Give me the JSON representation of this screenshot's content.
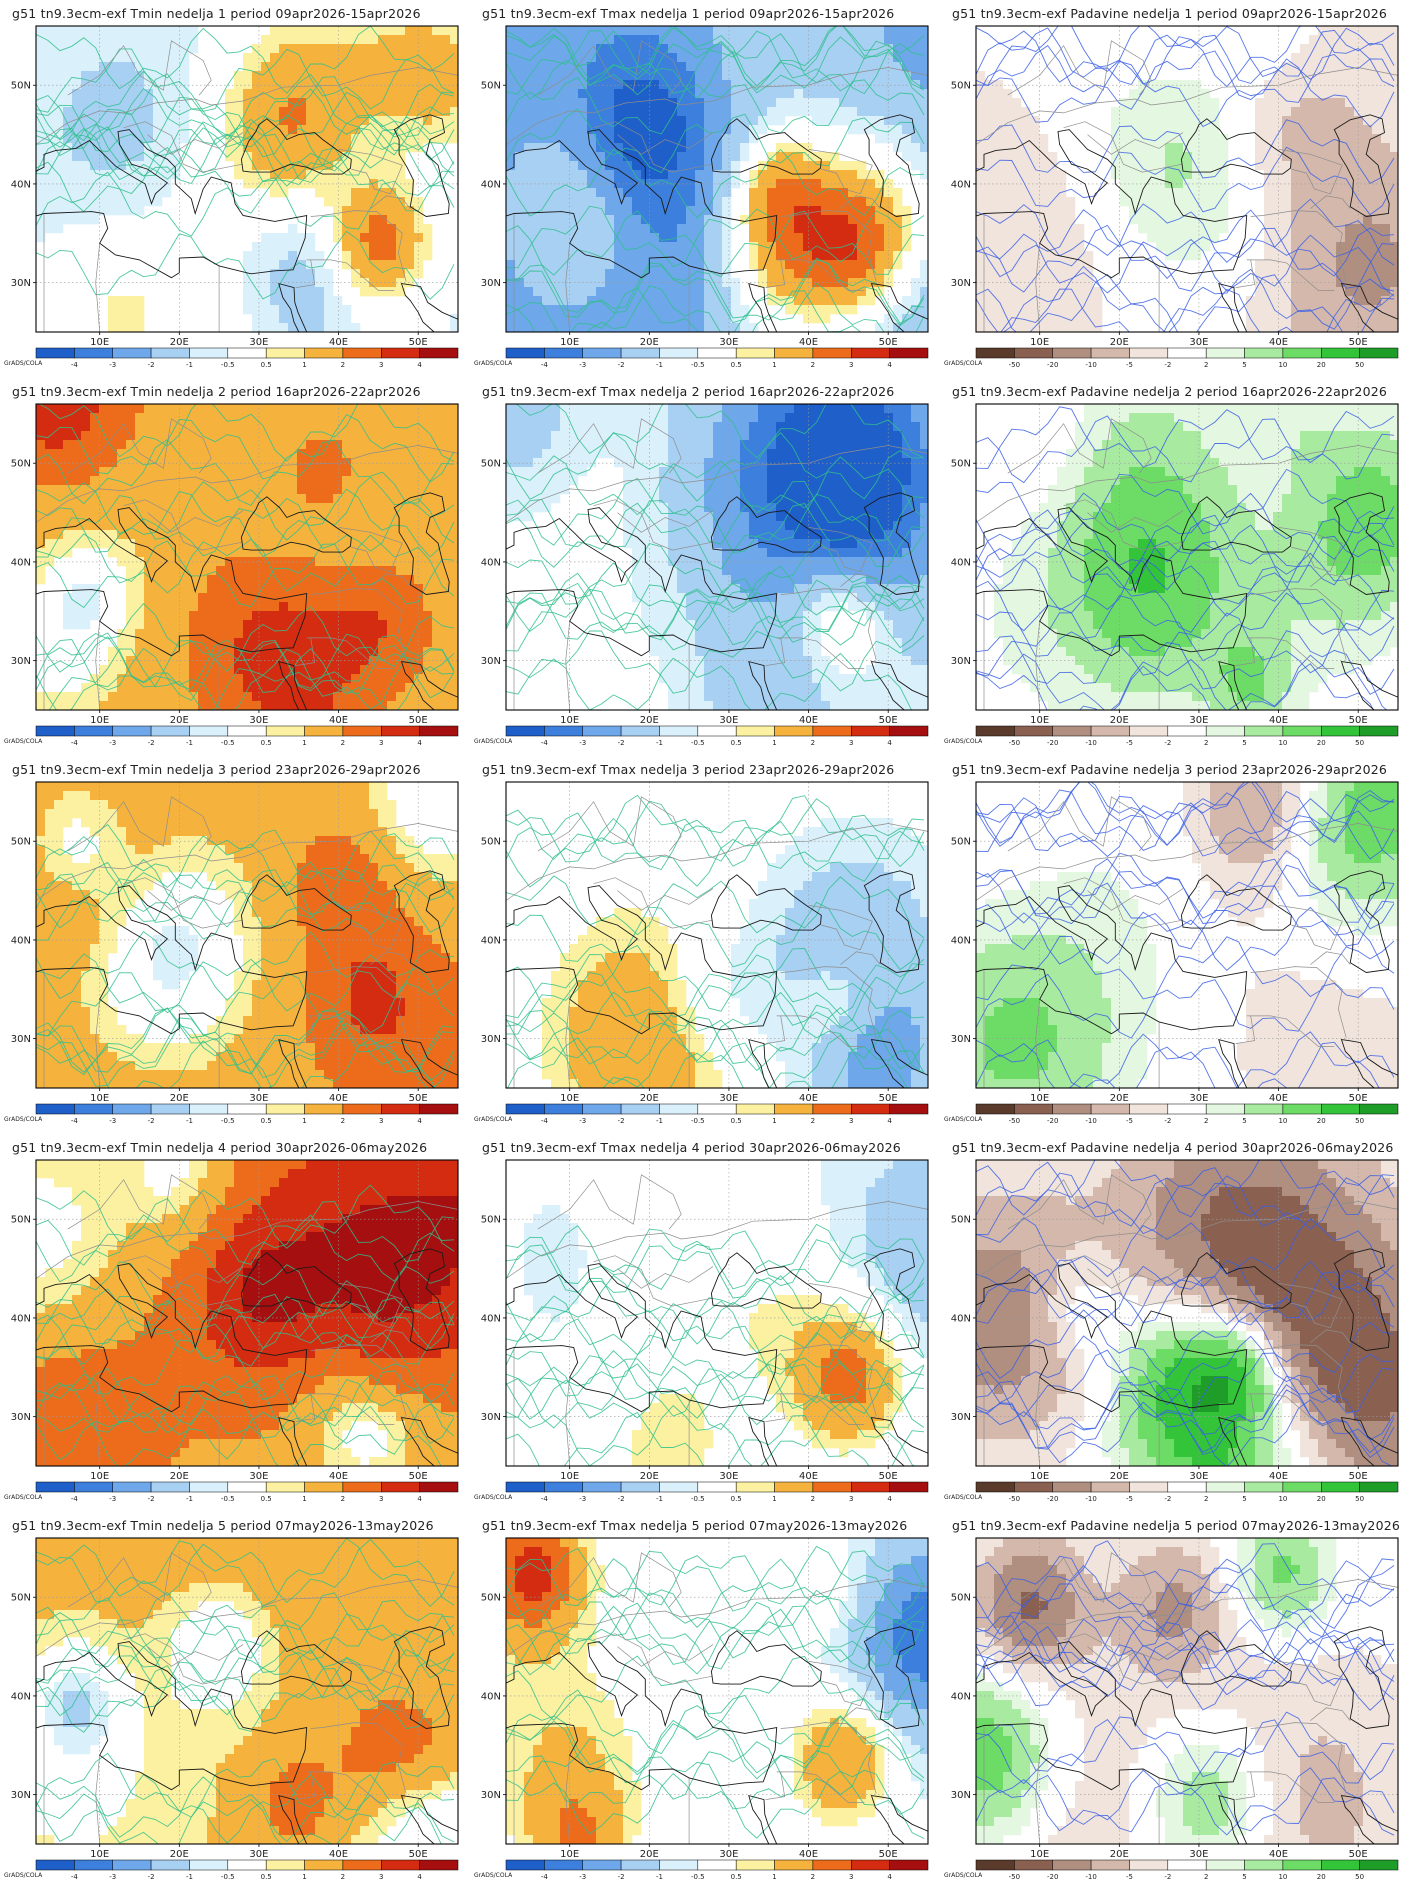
{
  "page": {
    "credit": "GrADS/COLA"
  },
  "axes": {
    "x_ticks": [
      "10E",
      "20E",
      "30E",
      "40E",
      "50E"
    ],
    "y_ticks": [
      "50N",
      "40N",
      "30N"
    ]
  },
  "colorbars": {
    "temperature": {
      "labels": [
        "-4",
        "-3",
        "-2",
        "-1",
        "-0.5",
        "0.5",
        "1",
        "2",
        "3",
        "4"
      ],
      "colors": [
        "#1f5fc9",
        "#3c7fdc",
        "#6ea8ea",
        "#a8d0f3",
        "#daf0fb",
        "#ffffff",
        "#fbf1a0",
        "#f5b33e",
        "#ec6c1c",
        "#d42c10",
        "#a50f0f"
      ]
    },
    "precipitation": {
      "labels": [
        "-50",
        "-20",
        "-10",
        "-5",
        "-2",
        "2",
        "5",
        "10",
        "20",
        "50"
      ],
      "colors": [
        "#5a3a2a",
        "#8a6150",
        "#b08f80",
        "#d4b8ab",
        "#f1e4dc",
        "#ffffff",
        "#e4f7e0",
        "#a8eba0",
        "#6ddc66",
        "#33c43a",
        "#1e9e28"
      ]
    }
  },
  "panels": [
    {
      "title": "g51  tn9.3ecm-exf  Tmin  nedelja  1  period  09apr2026-15apr2026",
      "type": "temperature",
      "var": "Tmin",
      "week": 1
    },
    {
      "title": "g51  tn9.3ecm-exf  Tmax  nedelja  1  period  09apr2026-15apr2026",
      "type": "temperature",
      "var": "Tmax",
      "week": 1
    },
    {
      "title": "g51  tn9.3ecm-exf  Padavine  nedelja  1  period  09apr2026-15apr2026",
      "type": "precipitation",
      "var": "Padavine",
      "week": 1
    },
    {
      "title": "g51  tn9.3ecm-exf  Tmin  nedelja  2  period  16apr2026-22apr2026",
      "type": "temperature",
      "var": "Tmin",
      "week": 2
    },
    {
      "title": "g51  tn9.3ecm-exf  Tmax  nedelja  2  period  16apr2026-22apr2026",
      "type": "temperature",
      "var": "Tmax",
      "week": 2
    },
    {
      "title": "g51  tn9.3ecm-exf  Padavine  nedelja  2  period  16apr2026-22apr2026",
      "type": "precipitation",
      "var": "Padavine",
      "week": 2
    },
    {
      "title": "g51  tn9.3ecm-exf  Tmin  nedelja  3  period  23apr2026-29apr2026",
      "type": "temperature",
      "var": "Tmin",
      "week": 3
    },
    {
      "title": "g51  tn9.3ecm-exf  Tmax  nedelja  3  period  23apr2026-29apr2026",
      "type": "temperature",
      "var": "Tmax",
      "week": 3
    },
    {
      "title": "g51  tn9.3ecm-exf  Padavine  nedelja  3  period  23apr2026-29apr2026",
      "type": "precipitation",
      "var": "Padavine",
      "week": 3
    },
    {
      "title": "g51  tn9.3ecm-exf  Tmin  nedelja  4  period  30apr2026-06may2026",
      "type": "temperature",
      "var": "Tmin",
      "week": 4
    },
    {
      "title": "g51  tn9.3ecm-exf  Tmax  nedelja  4  period  30apr2026-06may2026",
      "type": "temperature",
      "var": "Tmax",
      "week": 4
    },
    {
      "title": "g51  tn9.3ecm-exf  Padavine  nedelja  4  period  30apr2026-06may2026",
      "type": "precipitation",
      "var": "Padavine",
      "week": 4
    },
    {
      "title": "g51  tn9.3ecm-exf  Tmin  nedelja  5  period  07may2026-13may2026",
      "type": "temperature",
      "var": "Tmin",
      "week": 5
    },
    {
      "title": "g51  tn9.3ecm-exf  Tmax  nedelja  5  period  07may2026-13may2026",
      "type": "temperature",
      "var": "Tmax",
      "week": 5
    },
    {
      "title": "g51  tn9.3ecm-exf  Padavine  nedelja  5  period  07may2026-13may2026",
      "type": "precipitation",
      "var": "Padavine",
      "week": 5
    }
  ]
}
